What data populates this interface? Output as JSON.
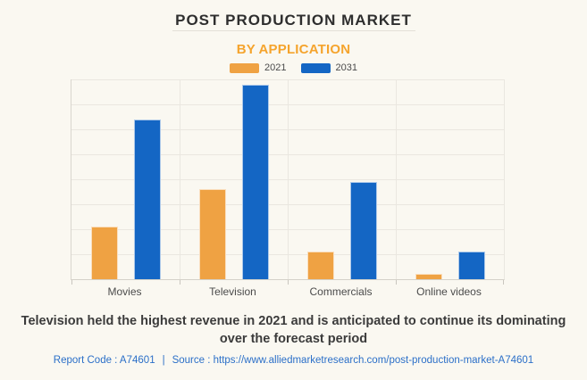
{
  "chart_data": {
    "type": "bar",
    "title": "POST PRODUCTION MARKET",
    "subtitle": "BY APPLICATION",
    "categories": [
      "Movies",
      "Television",
      "Commercials",
      "Online videos"
    ],
    "series": [
      {
        "name": "2021",
        "color": "#EFA243",
        "values": [
          2.1,
          3.6,
          1.1,
          0.2
        ]
      },
      {
        "name": "2031",
        "color": "#1466C4",
        "values": [
          6.4,
          7.8,
          3.9,
          1.1
        ]
      }
    ],
    "xlabel": "",
    "ylabel": "",
    "ylim": [
      0,
      8
    ],
    "y_tick_interval": 1,
    "y_axis_labels_visible": false,
    "grid": true,
    "legend_position": "top"
  },
  "footer": {
    "summary_line1": "Television held the highest revenue in 2021 and is anticipated to continue its dominating",
    "summary_line2": "over the forecast period",
    "report_code": "Report Code : A74601",
    "separator": "|",
    "source_prefix": "Source :",
    "source_url": "https://www.alliedmarketresearch.com/post-production-market-A74601"
  },
  "colors": {
    "background": "#FAF8F1",
    "accent_orange": "#F5A42D",
    "series_2021": "#EFA243",
    "series_2031": "#1466C4",
    "link_blue": "#2B6FC8",
    "gridline": "#EAE7E0"
  }
}
